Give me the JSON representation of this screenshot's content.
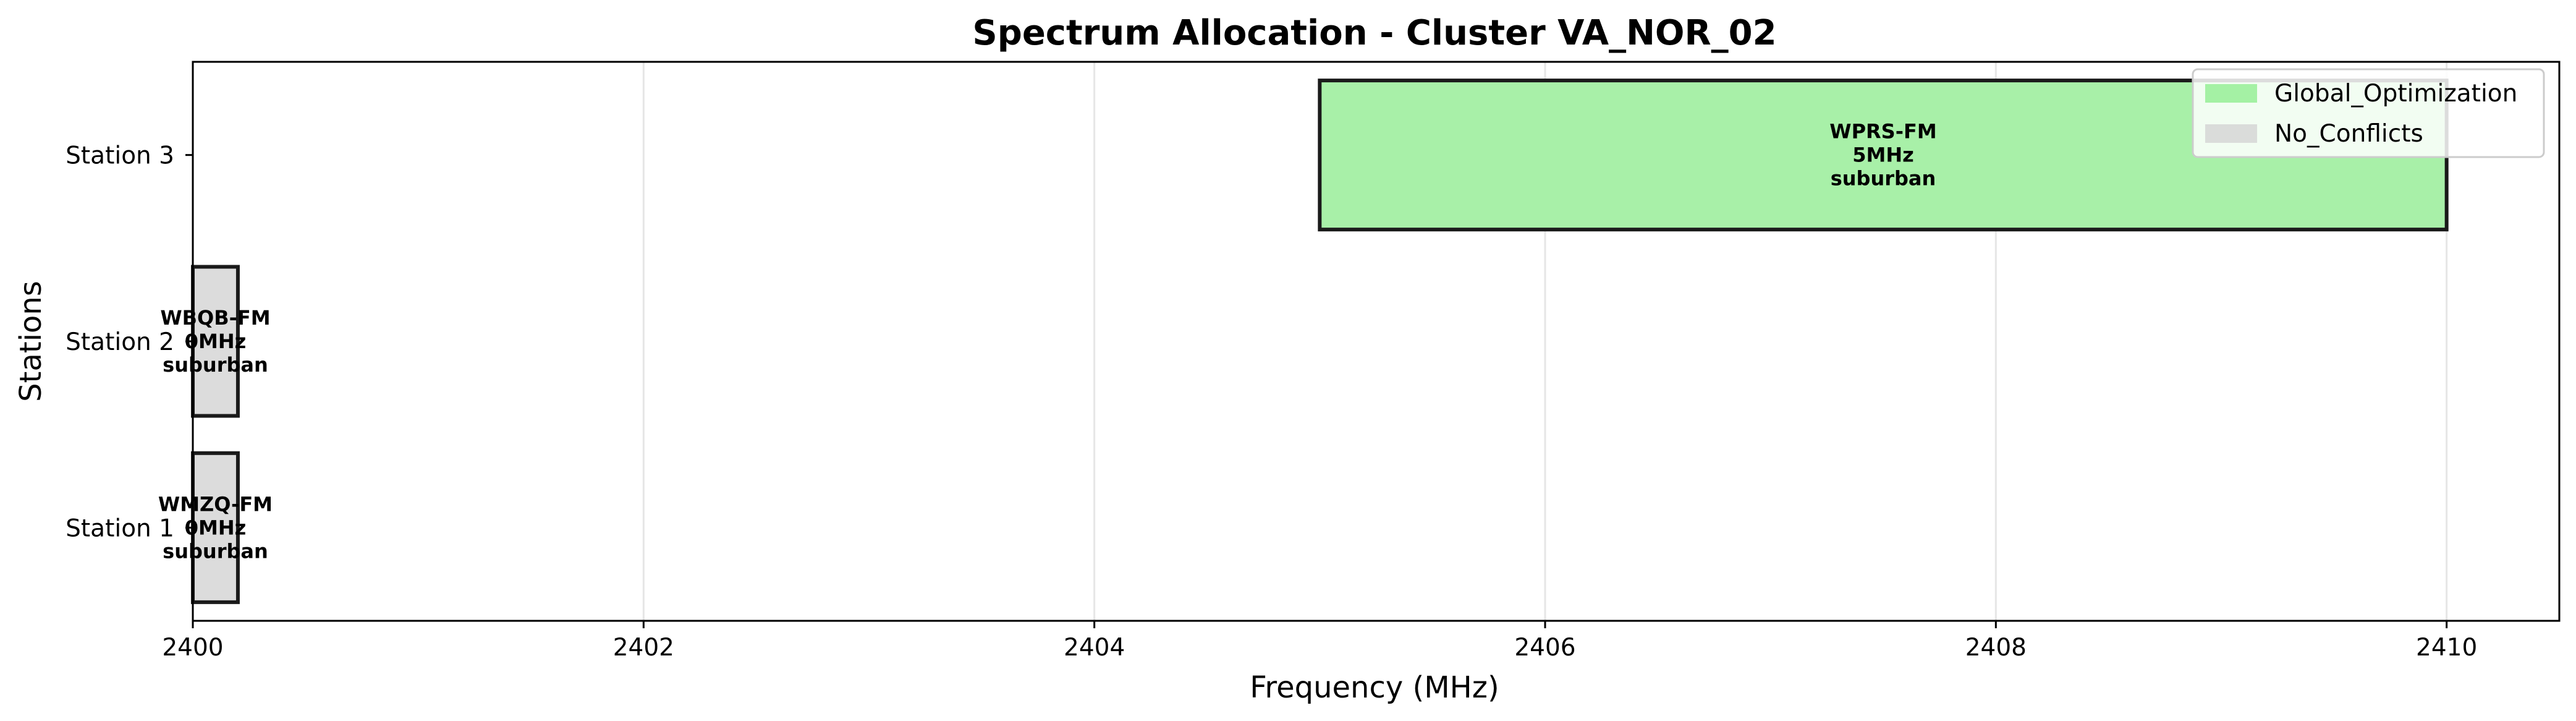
{
  "chart_data": {
    "type": "bar",
    "orientation": "horizontal",
    "title": "Spectrum Allocation - Cluster VA_NOR_02",
    "xlabel": "Frequency (MHz)",
    "ylabel": "Stations",
    "xlim": [
      2400,
      2410.5
    ],
    "xticks": [
      2400,
      2402,
      2404,
      2406,
      2408,
      2410
    ],
    "xgrid": true,
    "categories": [
      "Station 1",
      "Station 2",
      "Station 3"
    ],
    "bars": [
      {
        "station": "Station 1",
        "start": 2400,
        "end": 2400.2,
        "label_lines": [
          "WMZQ-FM",
          "0MHz",
          "suburban"
        ],
        "group": "No_Conflicts"
      },
      {
        "station": "Station 2",
        "start": 2400,
        "end": 2400.2,
        "label_lines": [
          "WBQB-FM",
          "0MHz",
          "suburban"
        ],
        "group": "No_Conflicts"
      },
      {
        "station": "Station 3",
        "start": 2405,
        "end": 2410,
        "label_lines": [
          "WPRS-FM",
          "5MHz",
          "suburban"
        ],
        "group": "Global_Optimization"
      }
    ],
    "legend": {
      "placement": "top-right",
      "entries": [
        {
          "name": "Global_Optimization",
          "color": "#90ee90"
        },
        {
          "name": "No_Conflicts",
          "color": "#d3d3d3"
        }
      ]
    }
  },
  "colors": {
    "Global_Optimization": "#a8f0a8",
    "No_Conflicts": "#dcdcdc",
    "edge": "#1a1a1a",
    "grid": "#e6e6e6"
  }
}
